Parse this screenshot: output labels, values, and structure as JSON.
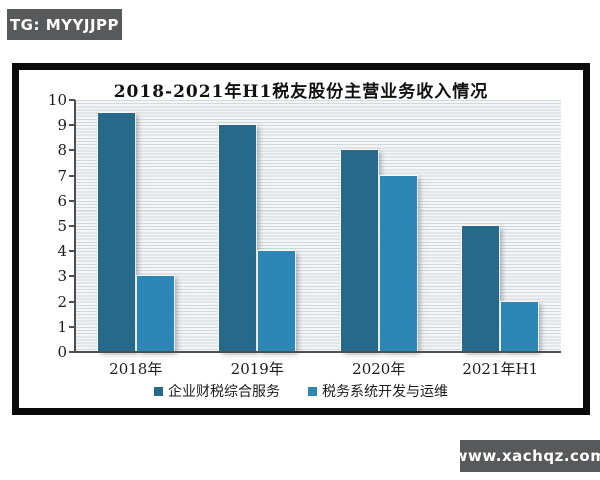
{
  "watermarks": {
    "top_left": "TG: MYYJJPP",
    "bottom_right": "www.xachqz.com"
  },
  "chart_data": {
    "type": "bar",
    "title": "2018-2021年H1税友股份主营业务收入情况",
    "categories": [
      "2018年",
      "2019年",
      "2020年",
      "2021年H1"
    ],
    "series": [
      {
        "name": "企业财税综合服务",
        "color": "#26698b",
        "values": [
          9.5,
          9,
          8,
          5
        ]
      },
      {
        "name": "税务系统开发与运维",
        "color": "#2c87b7",
        "values": [
          3,
          4,
          7,
          2
        ]
      }
    ],
    "xlabel": "",
    "ylabel": "",
    "ylim": [
      0,
      10
    ],
    "yticks": [
      0,
      1,
      2,
      3,
      4,
      5,
      6,
      7,
      8,
      9,
      10
    ],
    "grid": "fine horizontal stripe gridlines across plot area",
    "legend_position": "bottom"
  },
  "style": {
    "badge_bg": "#58595b",
    "frame_color": "#0a0a0a",
    "axis_color": "#4f4f4f",
    "stripe_line": "#d2d8dc",
    "stripe_bg": "#f3f5f6",
    "text_color": "#1c1c1c"
  }
}
